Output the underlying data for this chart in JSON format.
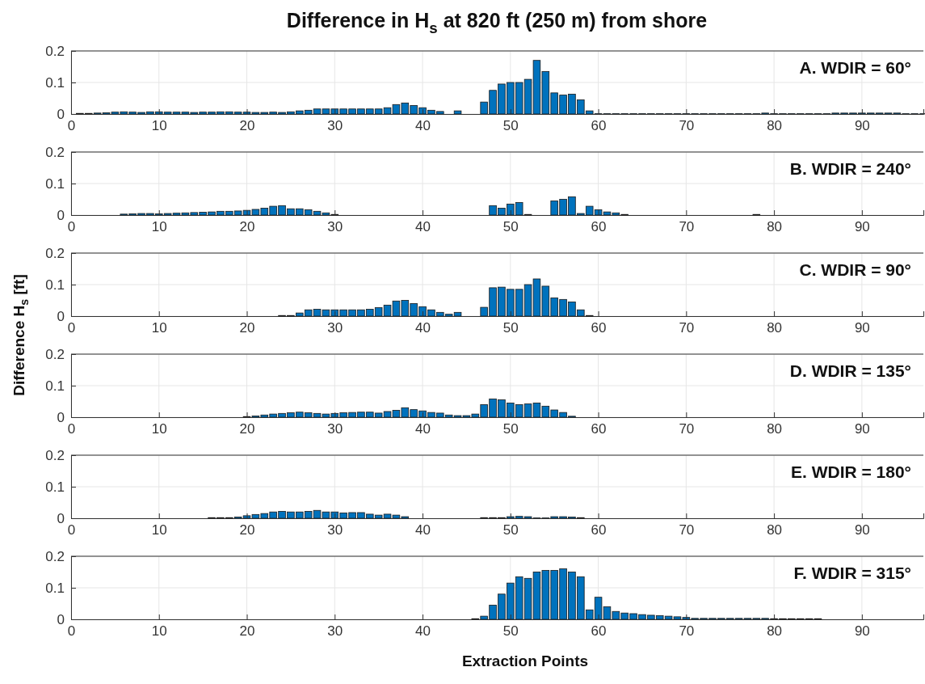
{
  "chart_data": [
    {
      "type": "bar",
      "title": "Difference in H$_{s}$ at 820 ft (250 m) from shore",
      "annotations": [
        "A. WDIR = 60°"
      ],
      "color": "#0072bd",
      "grid": true,
      "xlim": [
        0,
        97
      ],
      "xticks": [
        0,
        10,
        20,
        30,
        40,
        50,
        60,
        70,
        80,
        90
      ],
      "ylim": [
        0,
        0.2
      ],
      "yticks": [
        0,
        0.1,
        0.2
      ],
      "x": [
        1,
        2,
        3,
        4,
        5,
        6,
        7,
        8,
        9,
        10,
        11,
        12,
        13,
        14,
        15,
        16,
        17,
        18,
        19,
        20,
        21,
        22,
        23,
        24,
        25,
        26,
        27,
        28,
        29,
        30,
        31,
        32,
        33,
        34,
        35,
        36,
        37,
        38,
        39,
        40,
        41,
        42,
        43,
        44,
        45,
        46,
        47,
        48,
        49,
        50,
        51,
        52,
        53,
        54,
        55,
        56,
        57,
        58,
        59,
        60,
        61,
        62,
        63,
        64,
        65,
        66,
        67,
        68,
        69,
        70,
        71,
        72,
        73,
        74,
        75,
        76,
        77,
        78,
        79,
        80,
        81,
        82,
        83,
        84,
        85,
        86,
        87,
        88,
        89,
        90,
        91,
        92,
        93,
        94,
        95,
        96,
        97
      ],
      "values": [
        0.002,
        0.002,
        0.003,
        0.004,
        0.006,
        0.007,
        0.006,
        0.005,
        0.007,
        0.007,
        0.006,
        0.006,
        0.006,
        0.005,
        0.006,
        0.006,
        0.007,
        0.007,
        0.006,
        0.006,
        0.005,
        0.005,
        0.006,
        0.005,
        0.007,
        0.01,
        0.012,
        0.016,
        0.016,
        0.016,
        0.016,
        0.016,
        0.016,
        0.016,
        0.016,
        0.02,
        0.03,
        0.035,
        0.027,
        0.02,
        0.012,
        0.008,
        0,
        0.01,
        0,
        0,
        0.038,
        0.075,
        0.095,
        0.1,
        0.1,
        0.11,
        0.17,
        0.135,
        0.067,
        0.06,
        0.063,
        0.045,
        0.01,
        0.001,
        0.001,
        0.001,
        0.001,
        0.001,
        0.001,
        0.001,
        0.001,
        0.001,
        0.001,
        0.001,
        0.001,
        0.001,
        0.001,
        0.001,
        0.001,
        0.001,
        0.001,
        0.001,
        0.003,
        0.001,
        0.001,
        0.001,
        0.001,
        0.001,
        0.001,
        0.001,
        0.003,
        0.003,
        0.003,
        0.003,
        0.003,
        0.003,
        0.003,
        0.003,
        0.001,
        0.001,
        0.001
      ]
    },
    {
      "type": "bar",
      "annotations": [
        "B. WDIR = 240°"
      ],
      "color": "#0072bd",
      "grid": true,
      "xlim": [
        0,
        97
      ],
      "xticks": [
        0,
        10,
        20,
        30,
        40,
        50,
        60,
        70,
        80,
        90
      ],
      "ylim": [
        0,
        0.2
      ],
      "yticks": [
        0,
        0.1,
        0.2
      ],
      "x": [
        1,
        2,
        3,
        4,
        5,
        6,
        7,
        8,
        9,
        10,
        11,
        12,
        13,
        14,
        15,
        16,
        17,
        18,
        19,
        20,
        21,
        22,
        23,
        24,
        25,
        26,
        27,
        28,
        29,
        30,
        31,
        32,
        33,
        34,
        35,
        36,
        37,
        38,
        39,
        40,
        41,
        42,
        43,
        44,
        45,
        46,
        47,
        48,
        49,
        50,
        51,
        52,
        53,
        54,
        55,
        56,
        57,
        58,
        59,
        60,
        61,
        62,
        63,
        64,
        65,
        66,
        67,
        68,
        69,
        70,
        71,
        72,
        73,
        74,
        75,
        76,
        77,
        78,
        79,
        80,
        81,
        82,
        83,
        84,
        85,
        86,
        87,
        88,
        89,
        90,
        91,
        92,
        93,
        94,
        95,
        96,
        97
      ],
      "values": [
        0,
        0,
        0,
        0,
        0,
        0.003,
        0.004,
        0.005,
        0.005,
        0.004,
        0.005,
        0.006,
        0.007,
        0.008,
        0.009,
        0.01,
        0.012,
        0.012,
        0.013,
        0.015,
        0.018,
        0.022,
        0.028,
        0.03,
        0.02,
        0.02,
        0.017,
        0.012,
        0.007,
        0.002,
        0,
        0,
        0,
        0,
        0,
        0,
        0,
        0,
        0,
        0,
        0,
        0,
        0,
        0,
        0,
        0,
        0,
        0.03,
        0.022,
        0.035,
        0.04,
        0.002,
        0,
        0,
        0.045,
        0.05,
        0.058,
        0.005,
        0.028,
        0.017,
        0.01,
        0.007,
        0.002,
        0,
        0,
        0,
        0,
        0,
        0,
        0,
        0,
        0,
        0,
        0,
        0,
        0,
        0,
        0.002,
        0,
        0,
        0,
        0,
        0,
        0,
        0,
        0,
        0,
        0,
        0,
        0,
        0,
        0,
        0,
        0,
        0,
        0,
        0
      ]
    },
    {
      "type": "bar",
      "ylabel": "Difference H$_{s}$ [ft]",
      "annotations": [
        "C. WDIR = 90°"
      ],
      "color": "#0072bd",
      "grid": true,
      "xlim": [
        0,
        97
      ],
      "xticks": [
        0,
        10,
        20,
        30,
        40,
        50,
        60,
        70,
        80,
        90
      ],
      "ylim": [
        0,
        0.2
      ],
      "yticks": [
        0,
        0.1,
        0.2
      ],
      "x": [
        1,
        2,
        3,
        4,
        5,
        6,
        7,
        8,
        9,
        10,
        11,
        12,
        13,
        14,
        15,
        16,
        17,
        18,
        19,
        20,
        21,
        22,
        23,
        24,
        25,
        26,
        27,
        28,
        29,
        30,
        31,
        32,
        33,
        34,
        35,
        36,
        37,
        38,
        39,
        40,
        41,
        42,
        43,
        44,
        45,
        46,
        47,
        48,
        49,
        50,
        51,
        52,
        53,
        54,
        55,
        56,
        57,
        58,
        59,
        60,
        61,
        62,
        63,
        64,
        65,
        66,
        67,
        68,
        69,
        70,
        71,
        72,
        73,
        74,
        75,
        76,
        77,
        78,
        79,
        80,
        81,
        82,
        83,
        84,
        85,
        86,
        87,
        88,
        89,
        90,
        91,
        92,
        93,
        94,
        95,
        96,
        97
      ],
      "values": [
        0,
        0,
        0,
        0,
        0,
        0,
        0,
        0,
        0,
        0,
        0,
        0,
        0,
        0,
        0,
        0,
        0,
        0,
        0,
        0,
        0,
        0,
        0,
        0.002,
        0.002,
        0.01,
        0.02,
        0.022,
        0.02,
        0.02,
        0.02,
        0.02,
        0.02,
        0.022,
        0.027,
        0.035,
        0.048,
        0.05,
        0.04,
        0.03,
        0.02,
        0.012,
        0.006,
        0.012,
        0,
        0,
        0.028,
        0.09,
        0.092,
        0.085,
        0.085,
        0.1,
        0.118,
        0.095,
        0.058,
        0.053,
        0.045,
        0.02,
        0.002,
        0,
        0,
        0,
        0,
        0,
        0,
        0,
        0,
        0,
        0,
        0,
        0,
        0,
        0,
        0,
        0,
        0,
        0,
        0,
        0,
        0,
        0,
        0,
        0,
        0,
        0,
        0,
        0,
        0,
        0,
        0,
        0,
        0,
        0,
        0,
        0,
        0,
        0
      ]
    },
    {
      "type": "bar",
      "annotations": [
        "D. WDIR = 135°"
      ],
      "color": "#0072bd",
      "grid": true,
      "xlim": [
        0,
        97
      ],
      "xticks": [
        0,
        10,
        20,
        30,
        40,
        50,
        60,
        70,
        80,
        90
      ],
      "ylim": [
        0,
        0.2
      ],
      "yticks": [
        0,
        0.1,
        0.2
      ],
      "x": [
        1,
        2,
        3,
        4,
        5,
        6,
        7,
        8,
        9,
        10,
        11,
        12,
        13,
        14,
        15,
        16,
        17,
        18,
        19,
        20,
        21,
        22,
        23,
        24,
        25,
        26,
        27,
        28,
        29,
        30,
        31,
        32,
        33,
        34,
        35,
        36,
        37,
        38,
        39,
        40,
        41,
        42,
        43,
        44,
        45,
        46,
        47,
        48,
        49,
        50,
        51,
        52,
        53,
        54,
        55,
        56,
        57,
        58,
        59,
        60,
        61,
        62,
        63,
        64,
        65,
        66,
        67,
        68,
        69,
        70,
        71,
        72,
        73,
        74,
        75,
        76,
        77,
        78,
        79,
        80,
        81,
        82,
        83,
        84,
        85,
        86,
        87,
        88,
        89,
        90,
        91,
        92,
        93,
        94,
        95,
        96,
        97
      ],
      "values": [
        0,
        0,
        0,
        0,
        0,
        0,
        0,
        0,
        0,
        0,
        0,
        0,
        0,
        0,
        0,
        0,
        0,
        0,
        0,
        0.002,
        0.004,
        0.007,
        0.01,
        0.012,
        0.014,
        0.016,
        0.014,
        0.012,
        0.01,
        0.012,
        0.014,
        0.015,
        0.016,
        0.016,
        0.013,
        0.018,
        0.022,
        0.03,
        0.024,
        0.02,
        0.015,
        0.013,
        0.007,
        0.005,
        0.005,
        0.01,
        0.04,
        0.058,
        0.055,
        0.045,
        0.04,
        0.042,
        0.045,
        0.035,
        0.023,
        0.015,
        0.003,
        0,
        0,
        0,
        0,
        0,
        0,
        0,
        0,
        0,
        0,
        0,
        0,
        0,
        0,
        0,
        0,
        0,
        0,
        0,
        0,
        0,
        0,
        0,
        0,
        0,
        0,
        0,
        0,
        0,
        0,
        0,
        0,
        0,
        0,
        0,
        0,
        0,
        0,
        0,
        0
      ]
    },
    {
      "type": "bar",
      "annotations": [
        "E. WDIR = 180°"
      ],
      "color": "#0072bd",
      "grid": true,
      "xlim": [
        0,
        97
      ],
      "xticks": [
        0,
        10,
        20,
        30,
        40,
        50,
        60,
        70,
        80,
        90
      ],
      "ylim": [
        0,
        0.2
      ],
      "yticks": [
        0,
        0.1,
        0.2
      ],
      "x": [
        1,
        2,
        3,
        4,
        5,
        6,
        7,
        8,
        9,
        10,
        11,
        12,
        13,
        14,
        15,
        16,
        17,
        18,
        19,
        20,
        21,
        22,
        23,
        24,
        25,
        26,
        27,
        28,
        29,
        30,
        31,
        32,
        33,
        34,
        35,
        36,
        37,
        38,
        39,
        40,
        41,
        42,
        43,
        44,
        45,
        46,
        47,
        48,
        49,
        50,
        51,
        52,
        53,
        54,
        55,
        56,
        57,
        58,
        59,
        60,
        61,
        62,
        63,
        64,
        65,
        66,
        67,
        68,
        69,
        70,
        71,
        72,
        73,
        74,
        75,
        76,
        77,
        78,
        79,
        80,
        81,
        82,
        83,
        84,
        85,
        86,
        87,
        88,
        89,
        90,
        91,
        92,
        93,
        94,
        95,
        96,
        97
      ],
      "values": [
        0,
        0,
        0,
        0,
        0,
        0,
        0,
        0,
        0,
        0,
        0,
        0,
        0,
        0,
        0,
        0.002,
        0.002,
        0.002,
        0.004,
        0.008,
        0.012,
        0.015,
        0.02,
        0.022,
        0.02,
        0.02,
        0.022,
        0.025,
        0.02,
        0.02,
        0.017,
        0.018,
        0.018,
        0.013,
        0.01,
        0.013,
        0.01,
        0.005,
        0,
        0,
        0,
        0,
        0,
        0,
        0,
        0,
        0.002,
        0.002,
        0.002,
        0.005,
        0.006,
        0.005,
        0.001,
        0.001,
        0.005,
        0.005,
        0.004,
        0.002,
        0,
        0,
        0,
        0,
        0,
        0,
        0,
        0,
        0,
        0,
        0,
        0,
        0,
        0,
        0,
        0,
        0,
        0,
        0,
        0,
        0,
        0,
        0,
        0,
        0,
        0,
        0,
        0,
        0,
        0,
        0,
        0,
        0,
        0,
        0,
        0,
        0,
        0,
        0
      ]
    },
    {
      "type": "bar",
      "xlabel": "Extraction Points",
      "annotations": [
        "F. WDIR = 315°"
      ],
      "color": "#0072bd",
      "grid": true,
      "xlim": [
        0,
        97
      ],
      "xticks": [
        0,
        10,
        20,
        30,
        40,
        50,
        60,
        70,
        80,
        90
      ],
      "ylim": [
        0,
        0.2
      ],
      "yticks": [
        0,
        0.1,
        0.2
      ],
      "x": [
        1,
        2,
        3,
        4,
        5,
        6,
        7,
        8,
        9,
        10,
        11,
        12,
        13,
        14,
        15,
        16,
        17,
        18,
        19,
        20,
        21,
        22,
        23,
        24,
        25,
        26,
        27,
        28,
        29,
        30,
        31,
        32,
        33,
        34,
        35,
        36,
        37,
        38,
        39,
        40,
        41,
        42,
        43,
        44,
        45,
        46,
        47,
        48,
        49,
        50,
        51,
        52,
        53,
        54,
        55,
        56,
        57,
        58,
        59,
        60,
        61,
        62,
        63,
        64,
        65,
        66,
        67,
        68,
        69,
        70,
        71,
        72,
        73,
        74,
        75,
        76,
        77,
        78,
        79,
        80,
        81,
        82,
        83,
        84,
        85,
        86,
        87,
        88,
        89,
        90,
        91,
        92,
        93,
        94,
        95,
        96,
        97
      ],
      "values": [
        0,
        0,
        0,
        0,
        0,
        0,
        0,
        0,
        0,
        0,
        0,
        0,
        0,
        0,
        0,
        0,
        0,
        0,
        0,
        0,
        0,
        0,
        0,
        0,
        0,
        0,
        0,
        0,
        0,
        0,
        0,
        0,
        0,
        0,
        0,
        0,
        0,
        0,
        0,
        0,
        0,
        0,
        0,
        0,
        0,
        0.002,
        0.01,
        0.045,
        0.08,
        0.115,
        0.135,
        0.13,
        0.15,
        0.155,
        0.155,
        0.16,
        0.15,
        0.135,
        0.03,
        0.07,
        0.04,
        0.025,
        0.02,
        0.018,
        0.015,
        0.013,
        0.012,
        0.01,
        0.008,
        0.006,
        0.003,
        0.003,
        0.003,
        0.003,
        0.003,
        0.003,
        0.003,
        0.003,
        0.003,
        0.002,
        0.002,
        0.002,
        0.002,
        0.002,
        0.002,
        0,
        0,
        0,
        0,
        0,
        0,
        0,
        0,
        0,
        0,
        0,
        0
      ]
    }
  ]
}
